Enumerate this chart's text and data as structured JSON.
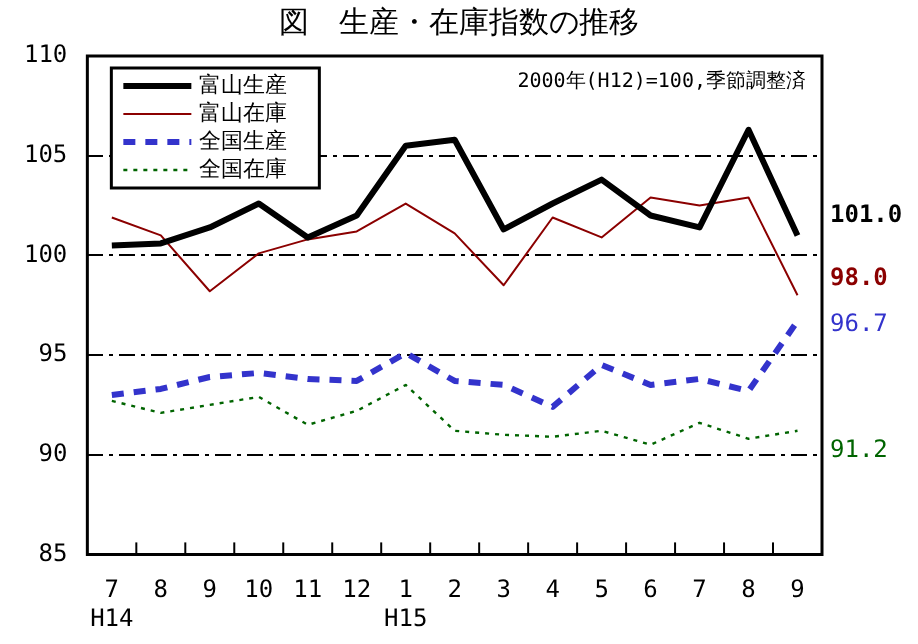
{
  "chart_data": {
    "type": "line",
    "title": "図　生産・在庫指数の推移",
    "annotations": [
      "2000年(H12)=100,季節調整済"
    ],
    "categories": [
      "7\nH14",
      "8",
      "9",
      "10",
      "11",
      "12",
      "1\nH15",
      "2",
      "3",
      "4",
      "5",
      "6",
      "7",
      "8",
      "9"
    ],
    "ylim": [
      85,
      110
    ],
    "yticks": [
      85,
      90,
      95,
      100,
      105,
      110
    ],
    "grid": "y",
    "legend": "top left",
    "marker": "none",
    "series": [
      {
        "name": "富山生産",
        "color": "#000000",
        "line_style": "solid",
        "values": [
          100.5,
          100.6,
          101.4,
          102.6,
          100.9,
          102.0,
          105.5,
          105.8,
          101.3,
          102.6,
          103.8,
          102.0,
          101.4,
          106.3,
          101.0
        ],
        "value_labels": [
          null,
          null,
          null,
          null,
          null,
          null,
          null,
          null,
          null,
          null,
          null,
          null,
          null,
          null,
          "101.0"
        ]
      },
      {
        "name": "富山在庫",
        "color": "#8b0000",
        "line_style": "solid",
        "values": [
          101.9,
          101.0,
          98.2,
          100.1,
          100.8,
          101.2,
          102.6,
          101.1,
          98.5,
          101.9,
          100.9,
          102.9,
          102.5,
          102.9,
          98.0
        ],
        "value_labels": [
          null,
          null,
          null,
          null,
          null,
          null,
          null,
          null,
          null,
          null,
          null,
          null,
          null,
          null,
          "98.0"
        ]
      },
      {
        "name": "全国生産",
        "color": "#3333cc",
        "line_style": "dashed",
        "values": [
          93.0,
          93.3,
          93.9,
          94.1,
          93.8,
          93.7,
          95.1,
          93.7,
          93.5,
          92.4,
          94.5,
          93.5,
          93.8,
          93.2,
          96.7
        ],
        "value_labels": [
          null,
          null,
          null,
          null,
          null,
          null,
          null,
          null,
          null,
          null,
          null,
          null,
          null,
          null,
          "96.7"
        ]
      },
      {
        "name": "全国在庫",
        "color": "#006400",
        "line_style": "dotted",
        "values": [
          92.7,
          92.1,
          92.5,
          92.9,
          91.5,
          92.2,
          93.5,
          91.2,
          91.0,
          90.9,
          91.2,
          90.5,
          91.6,
          90.8,
          91.2
        ],
        "value_labels": [
          null,
          null,
          null,
          null,
          null,
          null,
          null,
          null,
          null,
          null,
          null,
          null,
          null,
          null,
          "91.2"
        ]
      }
    ]
  }
}
